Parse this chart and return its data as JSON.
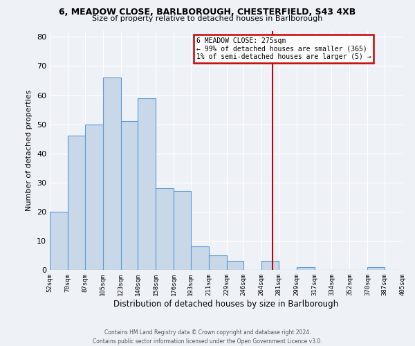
{
  "title_line1": "6, MEADOW CLOSE, BARLBOROUGH, CHESTERFIELD, S43 4XB",
  "title_line2": "Size of property relative to detached houses in Barlborough",
  "xlabel": "Distribution of detached houses by size in Barlborough",
  "ylabel": "Number of detached properties",
  "bin_edges": [
    52,
    70,
    87,
    105,
    123,
    140,
    158,
    176,
    193,
    211,
    229,
    246,
    264,
    281,
    299,
    317,
    334,
    352,
    370,
    387,
    405
  ],
  "bin_counts": [
    20,
    46,
    50,
    66,
    51,
    59,
    28,
    27,
    8,
    5,
    3,
    0,
    3,
    0,
    1,
    0,
    0,
    0,
    1,
    0
  ],
  "bar_color": "#c8d8e8",
  "bar_edge_color": "#5b9bd5",
  "vline_x": 275,
  "vline_color": "#cc0000",
  "annotation_title": "6 MEADOW CLOSE: 275sqm",
  "annotation_line2": "← 99% of detached houses are smaller (365)",
  "annotation_line3": "1% of semi-detached houses are larger (5) →",
  "annotation_box_color": "#cc0000",
  "ylim": [
    0,
    82
  ],
  "yticks": [
    0,
    10,
    20,
    30,
    40,
    50,
    60,
    70,
    80
  ],
  "tick_labels": [
    "52sqm",
    "70sqm",
    "87sqm",
    "105sqm",
    "123sqm",
    "140sqm",
    "158sqm",
    "176sqm",
    "193sqm",
    "211sqm",
    "229sqm",
    "246sqm",
    "264sqm",
    "281sqm",
    "299sqm",
    "317sqm",
    "334sqm",
    "352sqm",
    "370sqm",
    "387sqm",
    "405sqm"
  ],
  "footer_line1": "Contains HM Land Registry data © Crown copyright and database right 2024.",
  "footer_line2": "Contains public sector information licensed under the Open Government Licence v3.0.",
  "bg_color": "#eef2f7",
  "plot_bg_color": "#eef2f7",
  "grid_color": "#ffffff"
}
